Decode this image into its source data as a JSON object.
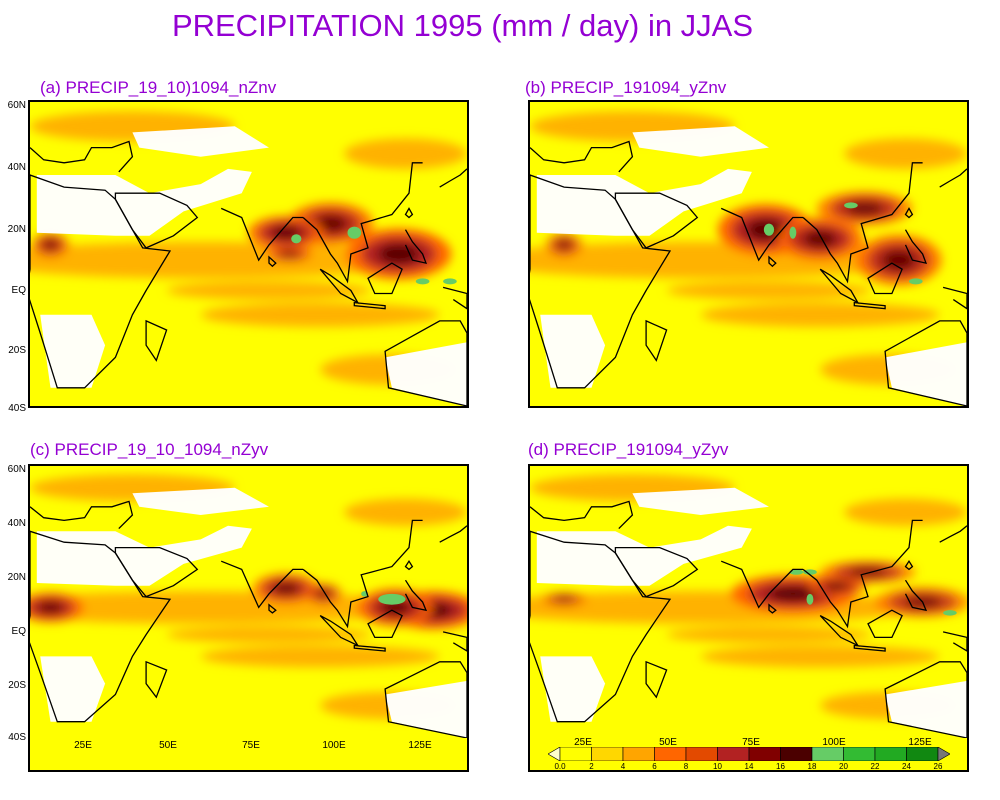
{
  "title": "PRECIPITATION 1995 (mm / day) in JJAS",
  "panels": [
    {
      "id": "a",
      "title": "(a)  PRECIP_19_10)1094_nZnv",
      "heavy": [
        [
          118,
          10,
          11,
          6,
          1.0
        ],
        [
          98,
          20,
          9,
          5,
          0.85
        ],
        [
          85,
          17,
          8,
          4,
          0.9
        ],
        [
          86,
          10,
          5,
          2,
          0.6
        ],
        [
          16,
          13,
          4,
          3,
          0.7
        ]
      ],
      "green": [
        [
          88,
          15,
          1.5,
          1.5
        ],
        [
          105,
          17,
          2,
          2
        ],
        [
          125,
          1,
          2,
          1
        ],
        [
          133,
          1,
          2,
          1
        ]
      ]
    },
    {
      "id": "b",
      "title": "(b)  PRECIP_191094_yZnv",
      "heavy": [
        [
          79,
          18,
          10,
          6,
          1.0
        ],
        [
          95,
          15,
          9,
          5,
          0.9
        ],
        [
          108,
          25,
          10,
          4,
          0.8
        ],
        [
          118,
          8,
          9,
          6,
          0.85
        ],
        [
          20,
          13,
          4,
          3,
          0.6
        ]
      ],
      "green": [
        [
          80,
          18,
          1.5,
          2
        ],
        [
          87,
          17,
          1,
          2
        ],
        [
          104,
          26,
          2,
          1
        ],
        [
          123,
          1,
          2,
          1
        ]
      ]
    },
    {
      "id": "c",
      "title": "(c)  PRECIP_19_10_1094_nZyv",
      "heavy": [
        [
          128,
          7,
          10,
          5,
          1.0
        ],
        [
          117,
          8,
          8,
          5,
          0.9
        ],
        [
          85,
          15,
          7,
          4,
          0.8
        ],
        [
          16,
          8,
          7,
          4,
          0.85
        ],
        [
          96,
          13,
          4,
          3,
          0.6
        ]
      ],
      "green": [
        [
          116,
          11,
          4,
          2
        ],
        [
          108,
          13,
          1,
          1
        ]
      ]
    },
    {
      "id": "d",
      "title": "(d)  PRECIP_191094_yZyv",
      "heavy": [
        [
          87,
          13,
          13,
          5,
          1.0
        ],
        [
          100,
          16,
          6,
          3,
          0.8
        ],
        [
          109,
          21,
          10,
          3,
          0.75
        ],
        [
          125,
          10,
          10,
          4,
          0.7
        ],
        [
          20,
          11,
          5,
          2,
          0.5
        ]
      ],
      "green": [
        [
          92,
          11,
          1,
          2
        ],
        [
          88,
          21,
          2,
          1
        ],
        [
          92,
          21,
          2,
          1
        ],
        [
          133,
          6,
          2,
          1
        ]
      ]
    }
  ],
  "lat_labels": [
    "60N",
    "40N",
    "20N",
    "EQ",
    "20S",
    "40S"
  ],
  "lon_labels": [
    "25E",
    "50E",
    "75E",
    "100E",
    "125E"
  ],
  "colorbar": {
    "labels": [
      "0.0",
      "2",
      "4",
      "6",
      "8",
      "10",
      "14",
      "16",
      "18",
      "20",
      "22",
      "24",
      "26"
    ],
    "colors": [
      "#ffffcc",
      "#ffff00",
      "#ffd700",
      "#ffa500",
      "#ff6600",
      "#e34a00",
      "#b22222",
      "#800000",
      "#4b0000",
      "#66cc66",
      "#33bb33",
      "#22aa22",
      "#118811",
      "#777777"
    ]
  }
}
